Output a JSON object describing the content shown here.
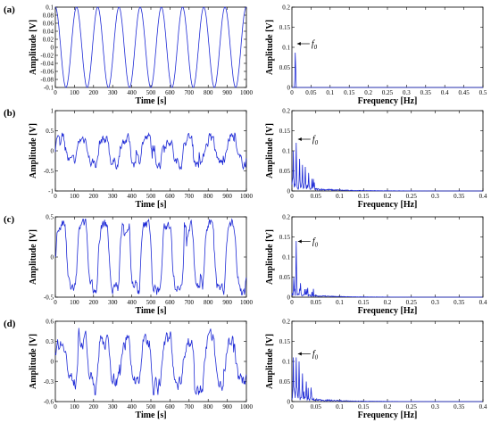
{
  "panels": [
    {
      "label": "(a)",
      "time": {
        "type": "line",
        "xlabel": "Time [s]",
        "ylabel": "Amplitude [V]",
        "xlim": [
          0,
          1000
        ],
        "ylim": [
          -0.1,
          0.1
        ],
        "xticks": [
          "0",
          "100",
          "200",
          "300",
          "400",
          "500",
          "600",
          "700",
          "800",
          "900",
          "1000"
        ],
        "yticks": [
          "-0.1",
          "-0.08",
          "-0.06",
          "-0.04",
          "-0.02",
          "0",
          "0.02",
          "0.04",
          "0.06",
          "0.08",
          "0.1"
        ],
        "signal": {
          "kind": "sine",
          "amplitude": 0.1,
          "period_s": 111
        }
      },
      "freq": {
        "type": "line",
        "xlabel": "Frequency [Hz]",
        "ylabel": "Amplitude [V]",
        "xlim": [
          0,
          0.5
        ],
        "ylim": [
          0,
          0.2
        ],
        "xticks": [
          "0",
          "0.05",
          "0.1",
          "0.15",
          "0.2",
          "0.25",
          "0.3",
          "0.35",
          "0.4",
          "0.45",
          "0.5"
        ],
        "yticks": [
          "0",
          "0.05",
          "0.1",
          "0.15",
          "0.2"
        ],
        "annotation": {
          "text": "f",
          "sub": "0",
          "at_hz": 0.009,
          "at_v": 0.1
        },
        "peaks": [
          {
            "hz": 0.009,
            "v": 0.1
          }
        ],
        "noise_floor": 0
      }
    },
    {
      "label": "(b)",
      "time": {
        "type": "line",
        "xlabel": "Time [s]",
        "ylabel": "Amplitude [V]",
        "xlim": [
          0,
          1000
        ],
        "ylim": [
          -1,
          1
        ],
        "xticks": [
          "0",
          "100",
          "200",
          "300",
          "400",
          "500",
          "600",
          "700",
          "800",
          "900",
          "1000"
        ],
        "yticks": [
          "-1",
          "-0.5",
          "0",
          "0.5",
          "1"
        ],
        "signal": {
          "kind": "noisy",
          "base": 0.3,
          "noise": 0.22,
          "spikes": 0.15,
          "clip": 0.45
        }
      },
      "freq": {
        "type": "line",
        "xlabel": "Frequency [Hz]",
        "ylabel": "Amplitude [V]",
        "xlim": [
          0,
          0.4
        ],
        "ylim": [
          0,
          0.2
        ],
        "xticks": [
          "0",
          "0.05",
          "0.1",
          "0.15",
          "0.2",
          "0.25",
          "0.3",
          "0.35",
          "0.4"
        ],
        "yticks": [
          "0",
          "0.05",
          "0.1",
          "0.15",
          "0.2"
        ],
        "annotation": {
          "text": "f",
          "sub": "0",
          "at_hz": 0.009,
          "at_v": 0.12
        },
        "peaks": [
          {
            "hz": 0.003,
            "v": 0.1
          },
          {
            "hz": 0.009,
            "v": 0.12
          },
          {
            "hz": 0.016,
            "v": 0.08
          },
          {
            "hz": 0.022,
            "v": 0.065
          },
          {
            "hz": 0.028,
            "v": 0.06
          },
          {
            "hz": 0.035,
            "v": 0.045
          },
          {
            "hz": 0.045,
            "v": 0.03
          }
        ],
        "noise_floor": 0.012
      }
    },
    {
      "label": "(c)",
      "time": {
        "type": "line",
        "xlabel": "Time [s]",
        "ylabel": "Amplitude [V]",
        "xlim": [
          0,
          1000
        ],
        "ylim": [
          -0.5,
          0.5
        ],
        "xticks": [
          "0",
          "100",
          "200",
          "300",
          "400",
          "500",
          "600",
          "700",
          "800",
          "900",
          "1000"
        ],
        "yticks": [
          "-0.5",
          "0",
          "0.5"
        ],
        "signal": {
          "kind": "noisy",
          "base": 0.4,
          "noise": 0.12,
          "spikes": 0.12,
          "clip": 0.47
        }
      },
      "freq": {
        "type": "line",
        "xlabel": "Frequency [Hz]",
        "ylabel": "Amplitude [V]",
        "xlim": [
          0,
          0.4
        ],
        "ylim": [
          0,
          0.2
        ],
        "xticks": [
          "0",
          "0.05",
          "0.1",
          "0.15",
          "0.2",
          "0.25",
          "0.3",
          "0.35",
          "0.4"
        ],
        "yticks": [
          "0",
          "0.05",
          "0.1",
          "0.15",
          "0.2"
        ],
        "annotation": {
          "text": "f",
          "sub": "0",
          "at_hz": 0.009,
          "at_v": 0.13
        },
        "peaks": [
          {
            "hz": 0.009,
            "v": 0.14
          },
          {
            "hz": 0.004,
            "v": 0.05
          },
          {
            "hz": 0.018,
            "v": 0.035
          },
          {
            "hz": 0.027,
            "v": 0.02
          }
        ],
        "noise_floor": 0.008
      }
    },
    {
      "label": "(d)",
      "time": {
        "type": "line",
        "xlabel": "Time [s]",
        "ylabel": "Amplitude [V]",
        "xlim": [
          0,
          1000
        ],
        "ylim": [
          -0.6,
          0.6
        ],
        "xticks": [
          "0",
          "100",
          "200",
          "300",
          "400",
          "500",
          "600",
          "700",
          "800",
          "900",
          "1000"
        ],
        "yticks": [
          "-0.6",
          "-0.3",
          "0",
          "0.3",
          "0.6"
        ],
        "signal": {
          "kind": "noisy",
          "base": 0.3,
          "noise": 0.18,
          "spikes": 0.15,
          "clip": 0.5
        }
      },
      "freq": {
        "type": "line",
        "xlabel": "Frequency [Hz]",
        "ylabel": "Amplitude [V]",
        "xlim": [
          0,
          0.4
        ],
        "ylim": [
          0,
          0.2
        ],
        "xticks": [
          "0",
          "0.05",
          "0.1",
          "0.15",
          "0.2",
          "0.25",
          "0.3",
          "0.35",
          "0.4"
        ],
        "yticks": [
          "0",
          "0.05",
          "0.1",
          "0.15",
          "0.2"
        ],
        "annotation": {
          "text": "f",
          "sub": "0",
          "at_hz": 0.009,
          "at_v": 0.11
        },
        "peaks": [
          {
            "hz": 0.003,
            "v": 0.11
          },
          {
            "hz": 0.009,
            "v": 0.11
          },
          {
            "hz": 0.015,
            "v": 0.1
          },
          {
            "hz": 0.022,
            "v": 0.07
          },
          {
            "hz": 0.03,
            "v": 0.05
          },
          {
            "hz": 0.04,
            "v": 0.035
          }
        ],
        "noise_floor": 0.012
      }
    }
  ],
  "colors": {
    "line": "#1f2bd6",
    "axis": "#000000",
    "text": "#000000"
  }
}
